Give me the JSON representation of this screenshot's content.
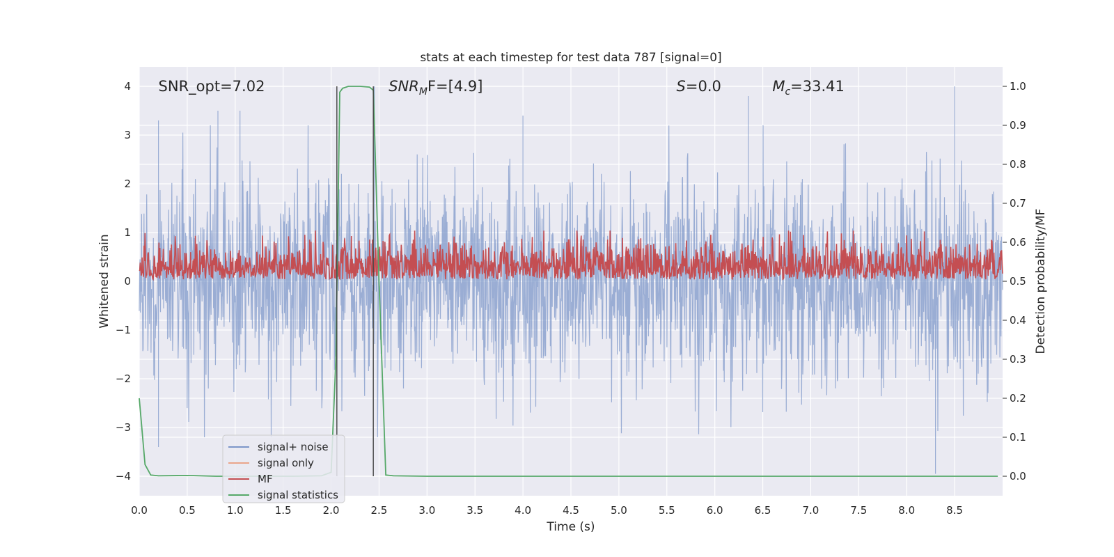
{
  "chart_data": {
    "type": "line",
    "title": "stats at each timestep for test data 787 [signal=0]",
    "xlabel": "Time (s)",
    "ylabel_left": "Whitened strain",
    "ylabel_right": "Detection probability/MF",
    "xlim": [
      0,
      9.0
    ],
    "ylim_left": [
      -4.4,
      4.4
    ],
    "ylim_right": [
      -0.05,
      1.05
    ],
    "xticks": [
      0.0,
      0.5,
      1.0,
      1.5,
      2.0,
      2.5,
      3.0,
      3.5,
      4.0,
      4.5,
      5.0,
      5.5,
      6.0,
      6.5,
      7.0,
      7.5,
      8.0,
      8.5
    ],
    "xtick_labels": [
      "0.0",
      "0.5",
      "1.0",
      "1.5",
      "2.0",
      "2.5",
      "3.0",
      "3.5",
      "4.0",
      "4.5",
      "5.0",
      "5.5",
      "6.0",
      "6.5",
      "7.0",
      "7.5",
      "8.0",
      "8.5"
    ],
    "yticks_left": [
      -4,
      -3,
      -2,
      -1,
      0,
      1,
      2,
      3,
      4
    ],
    "ytick_labels_left": [
      "−4",
      "−3",
      "−2",
      "−1",
      "0",
      "1",
      "2",
      "3",
      "4"
    ],
    "yticks_right": [
      0.0,
      0.1,
      0.2,
      0.3,
      0.4,
      0.5,
      0.6,
      0.7,
      0.8,
      0.9,
      1.0
    ],
    "ytick_labels_right": [
      "0.0",
      "0.1",
      "0.2",
      "0.3",
      "0.4",
      "0.5",
      "0.6",
      "0.7",
      "0.8",
      "0.9",
      "1.0"
    ],
    "grid": true,
    "legend_position": "lower-left",
    "annotations": [
      {
        "x": 0.2,
        "y": 4.0,
        "prefix": "SNR_opt=7.02",
        "italic": "",
        "sub": "",
        "suffix": ""
      },
      {
        "x": 2.6,
        "y": 4.0,
        "prefix": "",
        "italic": "SNR",
        "sub": "M",
        "suffix": "F=[4.9]"
      },
      {
        "x": 5.6,
        "y": 4.0,
        "prefix": "",
        "italic": "S",
        "sub": "",
        "suffix": "=0.0"
      },
      {
        "x": 6.6,
        "y": 4.0,
        "prefix": "",
        "italic": "M",
        "sub": "c",
        "suffix": "=33.41"
      }
    ],
    "vlines": [
      {
        "x": 2.06,
        "y0": -4.0,
        "y1": 4.0
      },
      {
        "x": 2.44,
        "y0": -4.0,
        "y1": 4.0
      }
    ],
    "series": [
      {
        "name": "signal+ noise",
        "color": "#7c96c8",
        "axis": "left",
        "generator": {
          "t_start": 0.0,
          "t_end": 9.0,
          "samples": 2200,
          "seed": 787,
          "sigma": 1.0,
          "peaks": [
            [
              0.2,
              3.3
            ],
            [
              0.82,
              3.5
            ],
            [
              1.05,
              3.5
            ],
            [
              2.45,
              4.0
            ],
            [
              4.0,
              3.4
            ],
            [
              6.35,
              3.8
            ],
            [
              8.5,
              4.0
            ],
            [
              8.3,
              -3.95
            ],
            [
              0.2,
              -3.4
            ]
          ]
        }
      },
      {
        "name": "signal only",
        "color": "#eaa58a",
        "axis": "left",
        "values": []
      },
      {
        "name": "MF",
        "color": "#c44e52",
        "axis": "right",
        "generator": {
          "t_start": 0.0,
          "t_end": 9.0,
          "samples": 1800,
          "seed": 4242,
          "base": 0.505,
          "amp": 0.05,
          "max": 0.63
        }
      },
      {
        "name": "signal statistics",
        "color": "#55a868",
        "axis": "right",
        "x": [
          0.0,
          0.06,
          0.12,
          0.2,
          0.5,
          0.8,
          1.2,
          1.6,
          1.9,
          2.0,
          2.05,
          2.09,
          2.12,
          2.18,
          2.3,
          2.4,
          2.44,
          2.5,
          2.57,
          2.65,
          3.0,
          4.0,
          5.0,
          6.0,
          7.0,
          8.0,
          8.95
        ],
        "values": [
          0.2,
          0.03,
          0.003,
          0.001,
          0.002,
          0.0,
          0.0,
          0.0,
          0.001,
          0.01,
          0.3,
          0.985,
          0.995,
          1.0,
          1.0,
          0.998,
          0.99,
          0.5,
          0.003,
          0.001,
          0.0,
          0.0,
          0.0,
          0.0,
          0.0,
          0.0,
          0.0
        ]
      }
    ]
  }
}
